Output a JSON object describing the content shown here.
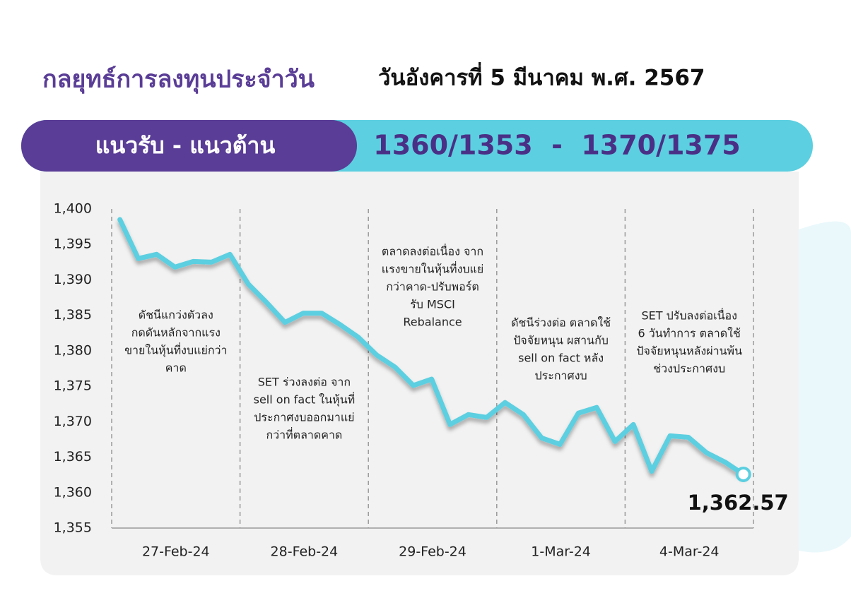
{
  "header": {
    "title": "กลยุทธ์การลงทุนประจำวัน",
    "date": "วันอังคารที่ 5 มีนาคม พ.ศ. 2567"
  },
  "banner": {
    "label": "แนวรับ - แนวต้าน",
    "levels": "1360/1353  -  1370/1375"
  },
  "chart_data": {
    "type": "line",
    "color": "#5bcfe0",
    "ylim": [
      1355,
      1400
    ],
    "yticks": [
      {
        "value": 1355,
        "label": "1,355"
      },
      {
        "value": 1360,
        "label": "1,360"
      },
      {
        "value": 1365,
        "label": "1,365"
      },
      {
        "value": 1370,
        "label": "1,370"
      },
      {
        "value": 1375,
        "label": "1,375"
      },
      {
        "value": 1380,
        "label": "1,380"
      },
      {
        "value": 1385,
        "label": "1,385"
      },
      {
        "value": 1390,
        "label": "1,390"
      },
      {
        "value": 1395,
        "label": "1,395"
      },
      {
        "value": 1400,
        "label": "1,400"
      }
    ],
    "segments": [
      {
        "category": "27-Feb-24",
        "annotation": [
          "ดัชนีแกว่งตัวลง",
          "กดดันหลักจากแรง",
          "ขายในหุ้นที่งบแย่กว่า",
          "คาด"
        ],
        "values": [
          1398.5,
          1393,
          1393.6,
          1391.8,
          1392.6,
          1392.5,
          1393.6
        ]
      },
      {
        "category": "28-Feb-24",
        "annotation": [
          "SET ร่วงลงต่อ จาก",
          "sell on fact ในหุ้นที่",
          "ประกาศงบออกมาแย่",
          "กว่าที่ตลาดคาด"
        ],
        "values": [
          1389.4,
          1386.8,
          1384,
          1385.3,
          1385.3,
          1383.7,
          1381.9
        ]
      },
      {
        "category": "29-Feb-24",
        "annotation": [
          "ตลาดลงต่อเนื่อง จาก",
          "แรงขายในหุ้นที่งบแย่",
          "กว่าคาด-ปรับพอร์ต",
          "รับ MSCI",
          "Rebalance"
        ],
        "values": [
          1379.4,
          1377.7,
          1375.1,
          1376,
          1369.6,
          1371,
          1370.6
        ]
      },
      {
        "category": "1-Mar-24",
        "annotation": [
          "ดัชนีร่วงต่อ ตลาดใช้",
          "ปัจจัยหนุน ผสานกับ",
          "sell on fact หลัง",
          "ประกาศงบ"
        ],
        "values": [
          1372.7,
          1371,
          1367.7,
          1366.8,
          1371.2,
          1372,
          1367.2
        ]
      },
      {
        "category": "4-Mar-24",
        "annotation": [
          "SET ปรับลงต่อเนื่อง",
          "6 วันทำการ ตลาดใช้",
          "ปัจจัยหนุนหลังผ่านพ้น",
          "ช่วงประกาศงบ"
        ],
        "values": [
          1369.6,
          1363,
          1368,
          1367.8,
          1365.6,
          1364.3,
          1362.57
        ],
        "value_labels": [
          null,
          null,
          null,
          null,
          null,
          null,
          "1,362.57"
        ]
      }
    ]
  }
}
